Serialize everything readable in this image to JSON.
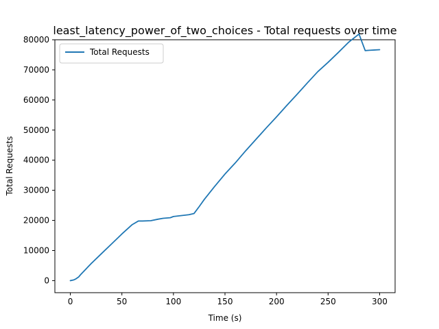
{
  "chart_data": {
    "type": "line",
    "title": "least_latency_power_of_two_choices - Total requests over time",
    "xlabel": "Time (s)",
    "ylabel": "Total Requests",
    "xlim": [
      -15,
      315
    ],
    "ylim": [
      -4000,
      80000
    ],
    "xticks": [
      0,
      50,
      100,
      150,
      200,
      250,
      300
    ],
    "yticks": [
      0,
      10000,
      20000,
      30000,
      40000,
      50000,
      60000,
      70000,
      80000
    ],
    "grid": false,
    "legend_position": "top-left",
    "series": [
      {
        "name": "Total Requests",
        "color": "#1f77b4",
        "x": [
          0,
          3,
          5,
          8,
          10,
          15,
          20,
          30,
          40,
          50,
          60,
          66,
          70,
          78,
          85,
          90,
          97,
          100,
          105,
          110,
          115,
          120,
          125,
          130,
          140,
          150,
          160,
          170,
          180,
          190,
          200,
          210,
          220,
          230,
          240,
          250,
          260,
          270,
          280,
          286,
          290,
          295,
          300
        ],
        "y": [
          0,
          200,
          500,
          1200,
          2000,
          3800,
          5600,
          8900,
          12200,
          15500,
          18600,
          19800,
          19800,
          19900,
          20400,
          20700,
          20900,
          21300,
          21500,
          21700,
          21900,
          22300,
          24600,
          27000,
          31300,
          35400,
          39100,
          43100,
          46900,
          50700,
          54400,
          58200,
          61900,
          65700,
          69400,
          72500,
          75800,
          79200,
          81900,
          76400,
          76500,
          76600,
          76700
        ]
      }
    ]
  }
}
